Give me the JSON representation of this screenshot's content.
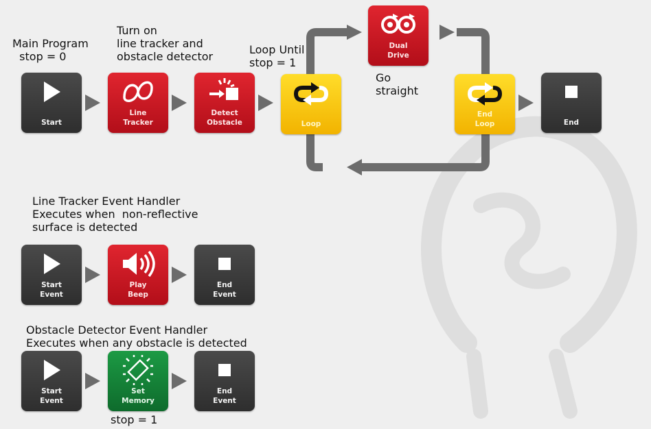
{
  "colors": {
    "background": "#efefef",
    "connector": "#6c6c6c",
    "block_gray": "#3a3a3a",
    "block_red": "#cc1620",
    "block_yellow": "#fcc913",
    "block_green": "#137f36"
  },
  "notes": {
    "main_program": "Main Program\n  stop = 0",
    "turn_on": "Turn on\nline tracker and\nobstacle detector",
    "loop_until": "Loop Until\nstop = 1",
    "go_straight": "Go\nstraight",
    "line_tracker_handler": "Line Tracker Event Handler\nExecutes when  non-reflective\nsurface is detected",
    "obstacle_handler": "Obstacle Detector Event Handler\nExecutes when any obstacle is detected",
    "set_memory": "stop = 1"
  },
  "main_program": {
    "blocks": [
      {
        "label": "Start",
        "icon": "play-icon"
      },
      {
        "label": "Line\nTracker",
        "icon": "line-tracker-icon"
      },
      {
        "label": "Detect\nObstacle",
        "icon": "detect-obstacle-icon"
      },
      {
        "label": "Loop",
        "icon": "loop-icon"
      },
      {
        "label": "Dual\nDrive",
        "icon": "dual-drive-icon"
      },
      {
        "label": "End\nLoop",
        "icon": "end-loop-icon"
      },
      {
        "label": "End",
        "icon": "stop-icon"
      }
    ]
  },
  "line_tracker_event": {
    "blocks": [
      {
        "label": "Start\nEvent",
        "icon": "play-icon"
      },
      {
        "label": "Play\nBeep",
        "icon": "speaker-icon"
      },
      {
        "label": "End\nEvent",
        "icon": "stop-icon"
      }
    ]
  },
  "obstacle_event": {
    "blocks": [
      {
        "label": "Start\nEvent",
        "icon": "play-icon"
      },
      {
        "label": "Set\nMemory",
        "icon": "memory-chip-icon"
      },
      {
        "label": "End\nEvent",
        "icon": "stop-icon"
      }
    ]
  }
}
